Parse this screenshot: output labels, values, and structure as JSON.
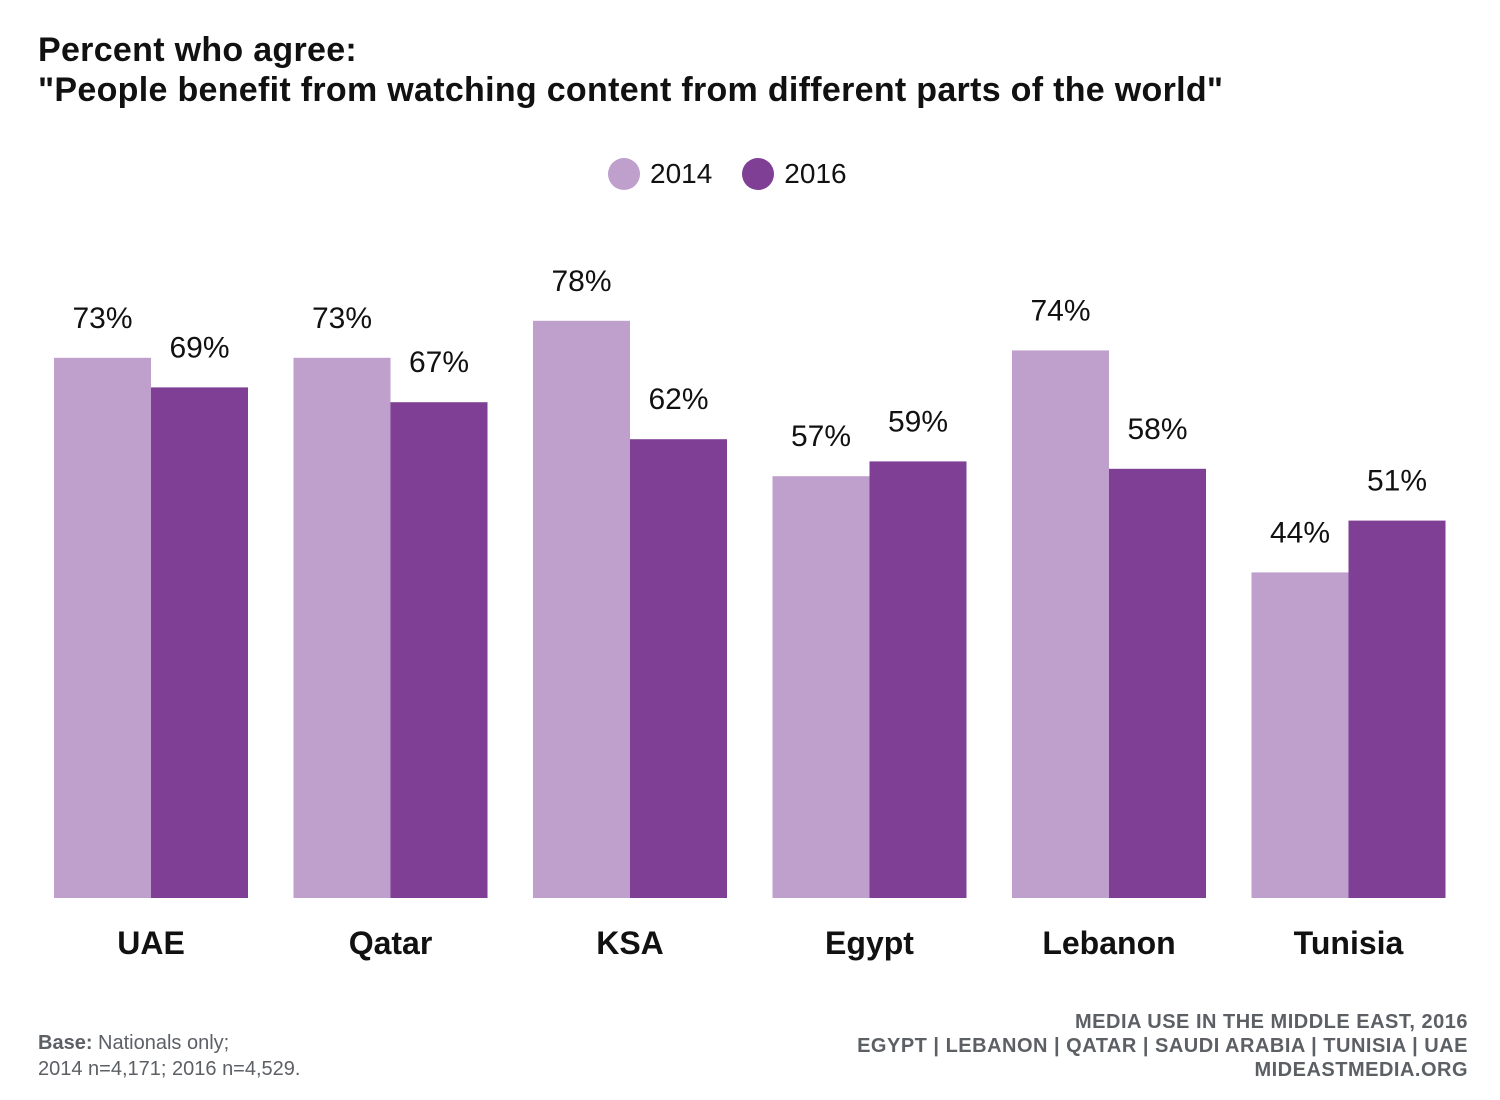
{
  "title": {
    "line1": "Percent who agree:",
    "line2": "\"People benefit from watching content from different parts of the world\""
  },
  "legend": [
    {
      "label": "2014",
      "color": "#bf9fcb"
    },
    {
      "label": "2016",
      "color": "#7e3f94"
    }
  ],
  "chart_data": {
    "type": "bar",
    "title": "Percent who agree: \"People benefit from watching content from different parts of the world\"",
    "categories": [
      "UAE",
      "Qatar",
      "KSA",
      "Egypt",
      "Lebanon",
      "Tunisia"
    ],
    "series": [
      {
        "name": "2014",
        "color": "#bf9fcb",
        "values": [
          73,
          73,
          78,
          57,
          74,
          44
        ]
      },
      {
        "name": "2016",
        "color": "#7e3f94",
        "values": [
          69,
          67,
          62,
          59,
          58,
          51
        ]
      }
    ],
    "value_suffix": "%",
    "ylim": [
      0,
      100
    ],
    "grid": false,
    "legend_position": "top-center"
  },
  "footer": {
    "base_label": "Base:",
    "base_text": "Nationals only;",
    "sample_text": "2014 n=4,171; 2016 n=4,529.",
    "source_line1": "MEDIA USE IN THE MIDDLE EAST, 2016",
    "source_line2": "EGYPT | LEBANON | QATAR | SAUDI ARABIA | TUNISIA | UAE",
    "source_line3": "MIDEASTMEDIA.ORG"
  }
}
